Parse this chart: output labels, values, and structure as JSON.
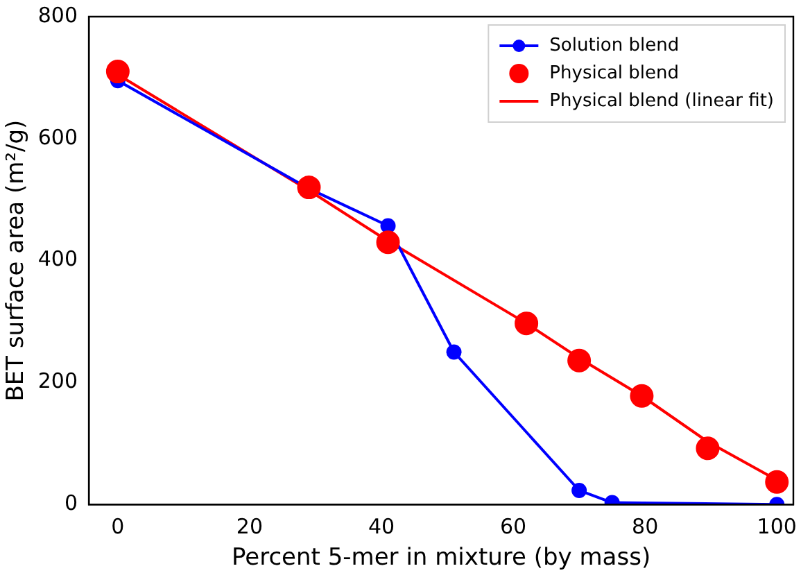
{
  "chart_data": {
    "type": "line",
    "xlabel": "Percent 5-mer in mixture (by mass)",
    "ylabel": "BET surface area (m²/g)",
    "xlim": [
      -4.4,
      102.5
    ],
    "xticks": [
      0,
      20,
      40,
      60,
      80,
      100
    ],
    "ylim": [
      0,
      800
    ],
    "yticks": [
      0,
      200,
      400,
      600,
      800
    ],
    "legend": "top right",
    "grid": false,
    "series": [
      {
        "name": "Solution blend",
        "marker": "circle",
        "color": "#0000ff",
        "x": [
          0,
          29,
          41,
          51,
          70,
          75,
          100
        ],
        "values": [
          695,
          518,
          457,
          250,
          23,
          3,
          0
        ]
      },
      {
        "name": "Physical blend",
        "type": "scatter",
        "marker": "circle",
        "color": "#ff0000",
        "x": [
          0,
          29,
          41,
          62,
          70,
          79.5,
          89.5,
          100
        ],
        "values": [
          710,
          520,
          430,
          297,
          236,
          178,
          92,
          37
        ]
      },
      {
        "name": "Physical blend (linear fit)",
        "marker": "none",
        "color": "#ff0000",
        "x": [
          0,
          29,
          41,
          62,
          70,
          79.5,
          89.5,
          100
        ],
        "values": [
          705,
          515,
          432,
          297,
          240,
          178,
          103,
          40
        ]
      }
    ]
  }
}
